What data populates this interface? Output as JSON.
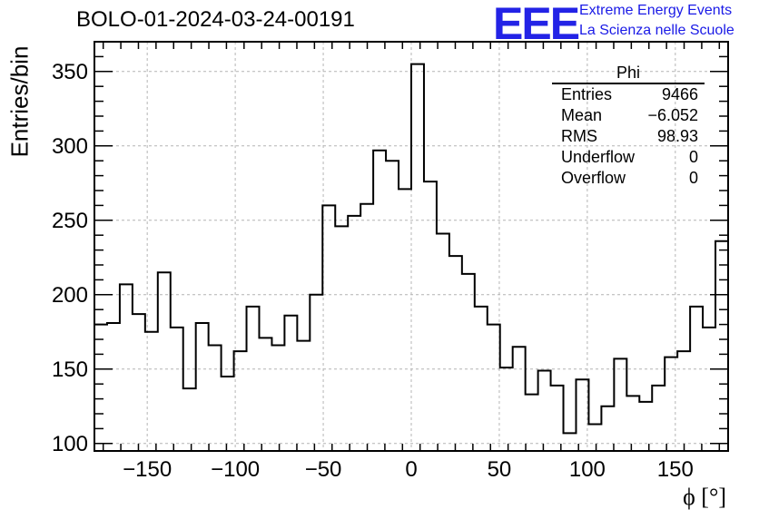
{
  "header": {
    "title": "BOLO-01-2024-03-24-00191",
    "logo_text": "EEE",
    "logo_line1": "Extreme Energy Events",
    "logo_line2": "La Scienza nelle Scuole"
  },
  "stats_box": {
    "title": "Phi",
    "rows": [
      {
        "label": "Entries",
        "value": "9466"
      },
      {
        "label": "Mean",
        "value": "−6.052"
      },
      {
        "label": "RMS",
        "value": "98.93"
      },
      {
        "label": "Underflow",
        "value": "0"
      },
      {
        "label": "Overflow",
        "value": "0"
      }
    ]
  },
  "colors": {
    "histogram_line": "#000000",
    "grid": "#b4b4b4",
    "logo": "#2323e6"
  },
  "chart_data": {
    "type": "histogram",
    "xlabel": "ϕ [°]",
    "ylabel": "Entries/bin",
    "xlim": [
      -180,
      180
    ],
    "ylim": [
      95,
      370
    ],
    "bin_width": 7.2,
    "bin_edges_start": -180,
    "values": [
      180,
      181,
      207,
      187,
      175,
      215,
      178,
      137,
      181,
      166,
      145,
      162,
      192,
      171,
      166,
      186,
      169,
      200,
      260,
      246,
      253,
      261,
      297,
      290,
      271,
      355,
      276,
      241,
      226,
      214,
      192,
      180,
      151,
      165,
      133,
      149,
      139,
      107,
      143,
      113,
      125,
      157,
      132,
      128,
      139,
      158,
      162,
      192,
      178,
      236
    ],
    "x_ticks": [
      -150,
      -100,
      -50,
      0,
      50,
      100,
      150
    ],
    "x_tick_labels": [
      "−150",
      "−100",
      "−50",
      "0",
      "50",
      "100",
      "150"
    ],
    "y_ticks": [
      100,
      150,
      200,
      250,
      300,
      350
    ],
    "y_tick_labels": [
      "100",
      "150",
      "200",
      "250",
      "300",
      "350"
    ],
    "grid": true
  }
}
